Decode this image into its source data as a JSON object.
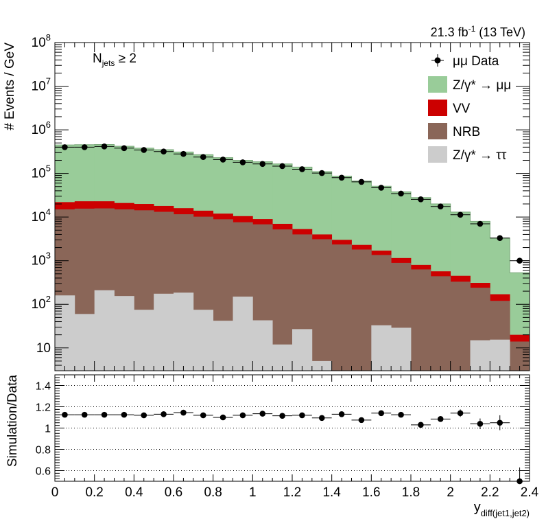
{
  "chart_data": [
    {
      "type": "stacked-bar-histogram",
      "yscale": "log",
      "ylabel": "# Events / GeV",
      "xlim": [
        0,
        2.4
      ],
      "ylim": [
        3,
        100000000
      ],
      "bin_edges": [
        0,
        0.1,
        0.2,
        0.3,
        0.4,
        0.5,
        0.6,
        0.7,
        0.8,
        0.9,
        1.0,
        1.1,
        1.2,
        1.3,
        1.4,
        1.5,
        1.6,
        1.7,
        1.8,
        1.9,
        2.0,
        2.1,
        2.2,
        2.3,
        2.4
      ],
      "y_tick_labels": [
        {
          "value": 10,
          "base": "10",
          "exp": ""
        },
        {
          "value": 100,
          "base": "10",
          "exp": "2"
        },
        {
          "value": 1000,
          "base": "10",
          "exp": "3"
        },
        {
          "value": 10000,
          "base": "10",
          "exp": "4"
        },
        {
          "value": 100000,
          "base": "10",
          "exp": "5"
        },
        {
          "value": 1000000,
          "base": "10",
          "exp": "6"
        },
        {
          "value": 10000000,
          "base": "10",
          "exp": "7"
        },
        {
          "value": 100000000,
          "base": "10",
          "exp": "8"
        }
      ],
      "lumi_label": {
        "main": "21.3 fb",
        "sup": "-1",
        "rest": " (13 TeV)"
      },
      "annotation": {
        "main": "N",
        "sub": "jets",
        "rest": " ≥ 2"
      },
      "legend_position": "top-right",
      "legend": [
        {
          "key": "data",
          "text": "μμ Data",
          "color": "#000000"
        },
        {
          "key": "zmm",
          "text": "Z/γ* → μμ",
          "color": "#99cc99"
        },
        {
          "key": "vv",
          "text": "VV",
          "color": "#cc0000"
        },
        {
          "key": "nrb",
          "text": "NRB",
          "color": "#8a6658"
        },
        {
          "key": "ztt",
          "text": "Z/γ* → ττ",
          "color": "#cccccc"
        }
      ],
      "stack_totals": {
        "ztt": [
          160,
          60,
          210,
          155,
          75,
          175,
          185,
          75,
          42,
          150,
          43,
          12,
          27,
          5,
          3,
          3,
          33,
          29,
          2.5,
          2.5,
          2.5,
          15,
          15.5,
          2.5
        ],
        "nrb": [
          15000,
          15600,
          15800,
          15000,
          14300,
          13200,
          11600,
          10200,
          8900,
          7600,
          6800,
          5200,
          4000,
          3100,
          2350,
          1800,
          1350,
          890,
          630,
          440,
          330,
          240,
          120,
          14
        ],
        "vv": [
          22000,
          23000,
          23000,
          21000,
          20000,
          18000,
          16000,
          14000,
          12000,
          10500,
          9000,
          7000,
          5300,
          4000,
          3000,
          2300,
          1700,
          1150,
          800,
          570,
          450,
          310,
          170,
          20
        ],
        "zmm": [
          450000,
          455000,
          460000,
          420000,
          380000,
          350000,
          310000,
          270000,
          230000,
          200000,
          185000,
          165000,
          140000,
          110000,
          87000,
          67000,
          51000,
          38000,
          28000,
          20000,
          13000,
          8000,
          3300,
          530
        ]
      },
      "series": [
        {
          "name": "μμ Data",
          "values": [
            400000,
            400000,
            415000,
            380000,
            345000,
            318000,
            280000,
            238000,
            208000,
            180000,
            165000,
            147000,
            125000,
            102000,
            80000,
            64000,
            47000,
            34500,
            25500,
            17500,
            11300,
            7000,
            3300,
            1000
          ]
        }
      ]
    },
    {
      "type": "scatter",
      "ylabel": "Simulation/Data",
      "xlabel": {
        "main": "y",
        "sub": "diff(jet1,jet2)"
      },
      "xlim": [
        0,
        2.4
      ],
      "ylim": [
        0.5,
        1.5
      ],
      "x_tick_labels": [
        "0",
        "0.2",
        "0.4",
        "0.6",
        "0.8",
        "1",
        "1.2",
        "1.4",
        "1.6",
        "1.8",
        "2",
        "2.2",
        "2.4"
      ],
      "y_tick_labels": [
        "0.6",
        "0.8",
        "1",
        "1.2",
        "1.4"
      ],
      "grid_y": [
        0.6,
        0.8,
        1.0,
        1.2,
        1.4
      ],
      "x": [
        0.05,
        0.15,
        0.25,
        0.35,
        0.45,
        0.55,
        0.65,
        0.75,
        0.85,
        0.95,
        1.05,
        1.15,
        1.25,
        1.35,
        1.45,
        1.55,
        1.65,
        1.75,
        1.85,
        1.95,
        2.05,
        2.15,
        2.25,
        2.35
      ],
      "values": [
        1.125,
        1.125,
        1.125,
        1.125,
        1.12,
        1.13,
        1.145,
        1.12,
        1.1,
        1.12,
        1.135,
        1.115,
        1.12,
        1.095,
        1.13,
        1.075,
        1.14,
        1.125,
        1.03,
        1.085,
        1.14,
        1.04,
        1.05,
        0.5
      ],
      "errors": [
        0.005,
        0.005,
        0.005,
        0.005,
        0.005,
        0.005,
        0.005,
        0.005,
        0.005,
        0.006,
        0.006,
        0.006,
        0.007,
        0.008,
        0.009,
        0.01,
        0.012,
        0.015,
        0.02,
        0.025,
        0.035,
        0.05,
        0.07,
        0.13
      ]
    }
  ]
}
